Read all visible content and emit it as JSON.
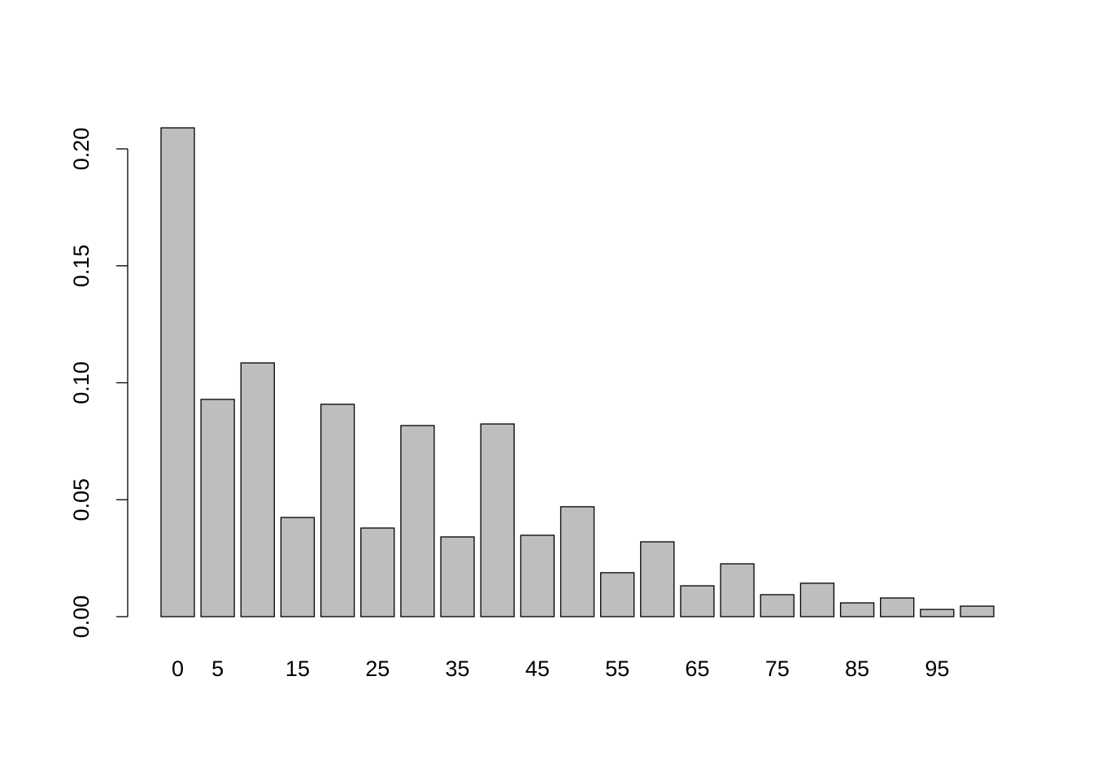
{
  "chart_data": {
    "type": "bar",
    "categories": [
      "0",
      "5",
      null,
      "15",
      null,
      "25",
      null,
      "35",
      null,
      "45",
      null,
      "55",
      null,
      "65",
      null,
      "75",
      null,
      "85",
      null,
      "95",
      null
    ],
    "values": [
      0.209,
      0.0929,
      0.1085,
      0.0424,
      0.0908,
      0.0379,
      0.0817,
      0.0341,
      0.0824,
      0.0348,
      0.047,
      0.0188,
      0.032,
      0.0132,
      0.0226,
      0.0094,
      0.0143,
      0.0059,
      0.008,
      0.0031,
      0.0045
    ],
    "color": "#bebebe",
    "ylim": [
      0,
      0.2
    ],
    "yticks": [
      {
        "value": 0,
        "label": "0.00"
      },
      {
        "value": 0.05,
        "label": "0.05"
      },
      {
        "value": 0.1,
        "label": "0.10"
      },
      {
        "value": 0.15,
        "label": "0.15"
      },
      {
        "value": 0.2,
        "label": "0.20"
      }
    ]
  }
}
